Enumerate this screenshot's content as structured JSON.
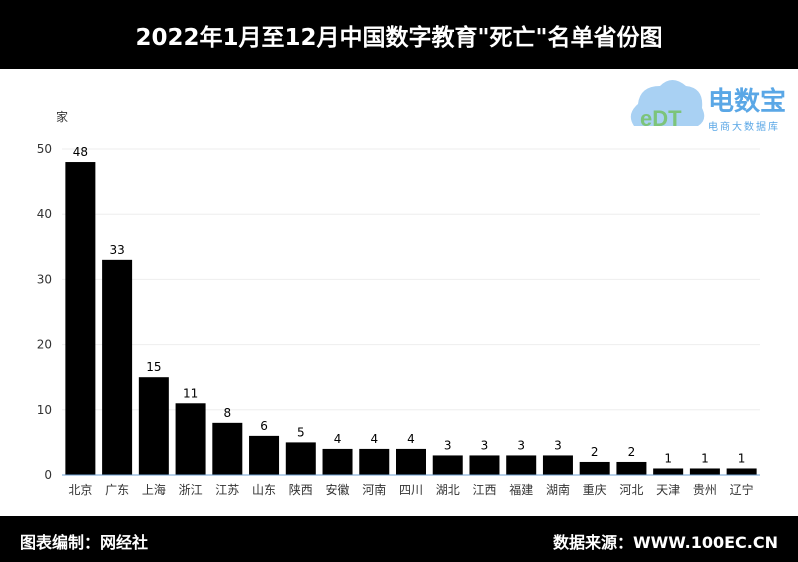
{
  "header": {
    "title": "2022年1月至12月中国数字教育\"死亡\"名单省份图"
  },
  "logo": {
    "mark": "eDT",
    "name": "电数宝",
    "sub": "电商大数据库",
    "color": "#5aa7e6"
  },
  "footer": {
    "left": "图表编制：网经社",
    "right": "数据来源：WWW.100EC.CN"
  },
  "chart_data": {
    "type": "bar",
    "title": "2022年1月至12月中国数字教育\"死亡\"名单省份图",
    "ylabel": "家",
    "xlabel": "",
    "ylim": [
      0,
      50
    ],
    "yticks": [
      0,
      10,
      20,
      30,
      40,
      50
    ],
    "grid": true,
    "categories": [
      "北京",
      "广东",
      "上海",
      "浙江",
      "江苏",
      "山东",
      "陕西",
      "安徽",
      "河南",
      "四川",
      "湖北",
      "江西",
      "福建",
      "湖南",
      "重庆",
      "河北",
      "天津",
      "贵州",
      "辽宁"
    ],
    "values": [
      48,
      33,
      15,
      11,
      8,
      6,
      5,
      4,
      4,
      4,
      3,
      3,
      3,
      3,
      2,
      2,
      1,
      1,
      1
    ],
    "bar_color": "#000000",
    "axis_color": "#6e9fd0"
  }
}
